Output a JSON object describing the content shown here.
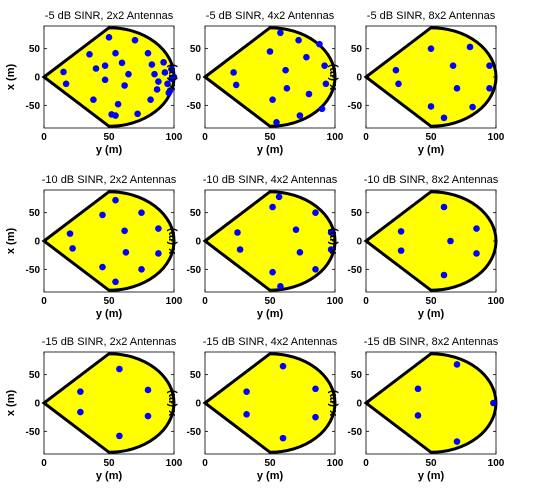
{
  "figure": {
    "background": "#ffffff",
    "region_fill": "#ffff00",
    "boundary_color": "#000000",
    "point_color": "#0000ff"
  },
  "chart_data": [
    {
      "type": "scatter",
      "title": "-5 dB SINR, 2x2 Antennas",
      "xlabel": "y (m)",
      "ylabel": "x (m)",
      "xlim": [
        0,
        100
      ],
      "ylim": [
        -90,
        90
      ],
      "xticks": [
        0,
        50,
        100
      ],
      "yticks": [
        50,
        0,
        -50
      ],
      "grid": false,
      "points": [
        [
          15,
          9
        ],
        [
          17,
          -12
        ],
        [
          35,
          40
        ],
        [
          38,
          -40
        ],
        [
          40,
          15
        ],
        [
          50,
          70
        ],
        [
          52,
          -66
        ],
        [
          55,
          42
        ],
        [
          57,
          -48
        ],
        [
          47,
          20
        ],
        [
          60,
          25
        ],
        [
          65,
          5
        ],
        [
          70,
          65
        ],
        [
          72,
          -65
        ],
        [
          80,
          42
        ],
        [
          82,
          -40
        ],
        [
          83,
          22
        ],
        [
          85,
          5
        ],
        [
          87,
          -22
        ],
        [
          88,
          -8
        ],
        [
          92,
          26
        ],
        [
          93,
          8
        ],
        [
          95,
          -12
        ],
        [
          96,
          -28
        ],
        [
          98,
          14
        ],
        [
          98,
          -3
        ],
        [
          97,
          -24
        ],
        [
          100,
          0
        ],
        [
          55,
          -68
        ],
        [
          62,
          -15
        ],
        [
          47,
          -5
        ]
      ]
    },
    {
      "type": "scatter",
      "title": "-5 dB SINR, 4x2 Antennas",
      "xlabel": "y (m)",
      "ylabel": "x (m)",
      "xlim": [
        0,
        100
      ],
      "ylim": [
        -90,
        90
      ],
      "xticks": [
        0,
        50,
        100
      ],
      "yticks": [
        50,
        0,
        -50
      ],
      "grid": false,
      "points": [
        [
          22,
          8
        ],
        [
          24,
          -14
        ],
        [
          50,
          45
        ],
        [
          52,
          -40
        ],
        [
          58,
          78
        ],
        [
          62,
          12
        ],
        [
          63,
          -20
        ],
        [
          72,
          65
        ],
        [
          73,
          -68
        ],
        [
          78,
          35
        ],
        [
          80,
          -30
        ],
        [
          88,
          58
        ],
        [
          90,
          -56
        ],
        [
          92,
          20
        ],
        [
          93,
          -12
        ],
        [
          55,
          -80
        ]
      ]
    },
    {
      "type": "scatter",
      "title": "-5 dB SINR, 8x2 Antennas",
      "xlabel": "y (m)",
      "ylabel": "x (m)",
      "xlim": [
        0,
        100
      ],
      "ylim": [
        -90,
        90
      ],
      "xticks": [
        0,
        50,
        100
      ],
      "yticks": [
        50,
        0,
        -50
      ],
      "grid": false,
      "points": [
        [
          23,
          12
        ],
        [
          25,
          -12
        ],
        [
          50,
          50
        ],
        [
          50,
          -52
        ],
        [
          60,
          -72
        ],
        [
          67,
          20
        ],
        [
          70,
          -20
        ],
        [
          80,
          53
        ],
        [
          82,
          -53
        ],
        [
          95,
          20
        ],
        [
          95,
          -20
        ]
      ]
    },
    {
      "type": "scatter",
      "title": "-10 dB SINR, 2x2 Antennas",
      "xlabel": "y (m)",
      "ylabel": "x (m)",
      "xlim": [
        0,
        100
      ],
      "ylim": [
        -90,
        90
      ],
      "xticks": [
        0,
        50,
        100
      ],
      "yticks": [
        50,
        0,
        -50
      ],
      "grid": false,
      "points": [
        [
          20,
          13
        ],
        [
          22,
          -13
        ],
        [
          45,
          46
        ],
        [
          45,
          -46
        ],
        [
          55,
          72
        ],
        [
          55,
          -72
        ],
        [
          62,
          18
        ],
        [
          63,
          -20
        ],
        [
          75,
          50
        ],
        [
          75,
          -50
        ],
        [
          88,
          22
        ],
        [
          88,
          -22
        ]
      ]
    },
    {
      "type": "scatter",
      "title": "-10 dB SINR, 4x2 Antennas",
      "xlabel": "y (m)",
      "ylabel": "x (m)",
      "xlim": [
        0,
        100
      ],
      "ylim": [
        -90,
        90
      ],
      "xticks": [
        0,
        50,
        100
      ],
      "yticks": [
        50,
        0,
        -50
      ],
      "grid": false,
      "points": [
        [
          25,
          15
        ],
        [
          27,
          -15
        ],
        [
          52,
          60
        ],
        [
          52,
          -55
        ],
        [
          57,
          78
        ],
        [
          58,
          -80
        ],
        [
          70,
          20
        ],
        [
          73,
          -20
        ],
        [
          85,
          50
        ],
        [
          85,
          -50
        ],
        [
          97,
          15
        ],
        [
          97,
          -15
        ]
      ]
    },
    {
      "type": "scatter",
      "title": "-10 dB SINR, 8x2 Antennas",
      "xlabel": "y (m)",
      "ylabel": "x (m)",
      "xlim": [
        0,
        100
      ],
      "ylim": [
        -90,
        90
      ],
      "xticks": [
        0,
        50,
        100
      ],
      "yticks": [
        50,
        0,
        -50
      ],
      "grid": false,
      "points": [
        [
          27,
          17
        ],
        [
          27,
          -17
        ],
        [
          60,
          60
        ],
        [
          60,
          -60
        ],
        [
          65,
          0
        ],
        [
          85,
          22
        ],
        [
          85,
          -22
        ]
      ]
    },
    {
      "type": "scatter",
      "title": "-15 dB SINR, 2x2 Antennas",
      "xlabel": "y (m)",
      "ylabel": "x (m)",
      "xlim": [
        0,
        100
      ],
      "ylim": [
        -90,
        90
      ],
      "xticks": [
        0,
        50,
        100
      ],
      "yticks": [
        50,
        0,
        -50
      ],
      "grid": false,
      "points": [
        [
          28,
          20
        ],
        [
          28,
          -16
        ],
        [
          58,
          60
        ],
        [
          58,
          -58
        ],
        [
          80,
          23
        ],
        [
          80,
          -23
        ]
      ]
    },
    {
      "type": "scatter",
      "title": "-15 dB SINR, 4x2 Antennas",
      "xlabel": "y (m)",
      "ylabel": "x (m)",
      "xlim": [
        0,
        100
      ],
      "ylim": [
        -90,
        90
      ],
      "xticks": [
        0,
        50,
        100
      ],
      "yticks": [
        50,
        0,
        -50
      ],
      "grid": false,
      "points": [
        [
          32,
          20
        ],
        [
          32,
          -20
        ],
        [
          60,
          65
        ],
        [
          60,
          -62
        ],
        [
          85,
          25
        ],
        [
          85,
          -25
        ]
      ]
    },
    {
      "type": "scatter",
      "title": "-15 dB SINR, 8x2 Antennas",
      "xlabel": "y (m)",
      "ylabel": "x (m)",
      "xlim": [
        0,
        100
      ],
      "ylim": [
        -90,
        90
      ],
      "xticks": [
        0,
        50,
        100
      ],
      "yticks": [
        50,
        0,
        -50
      ],
      "grid": false,
      "points": [
        [
          40,
          25
        ],
        [
          40,
          -22
        ],
        [
          70,
          68
        ],
        [
          70,
          -68
        ],
        [
          98,
          0
        ]
      ]
    }
  ]
}
